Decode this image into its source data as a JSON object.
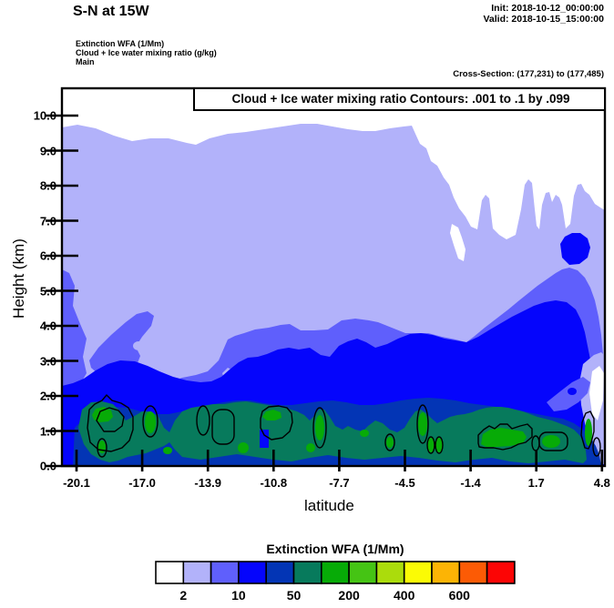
{
  "header": {
    "title": "S-N at 15W",
    "init_label": "Init: 2018-10-12_00:00:00",
    "valid_label": "Valid: 2018-10-15_15:00:00",
    "field_line1": "Extinction WFA  (1/Mm)",
    "field_line2": "Cloud + Ice water mixing ratio   (g/kg)",
    "field_line3": "Main",
    "cross_section": "Cross-Section: (177,231) to (177,485)"
  },
  "plot": {
    "contour_title": "Cloud + Ice water mixing ratio Contours: .001 to .1 by .099",
    "ylabel": "Height (km)",
    "xlabel": "latitude",
    "y_tick_labels": [
      "10.0",
      "9.0",
      "8.0",
      "7.0",
      "6.0",
      "5.0",
      "4.0",
      "3.0",
      "2.0",
      "1.0",
      "0.0"
    ],
    "x_tick_labels": [
      "-20.1",
      "-17.0",
      "-13.9",
      "-10.8",
      "-7.7",
      "-4.5",
      "-1.4",
      "1.7",
      "4.8"
    ]
  },
  "colorbar": {
    "title": "Extinction WFA  (1/Mm)",
    "boundary_labels": [
      "2",
      "10",
      "50",
      "200",
      "400",
      "600"
    ],
    "colors": [
      "#ffffff",
      "#b2b2fa",
      "#5f5ffc",
      "#0505fc",
      "#0335b5",
      "#077a5c",
      "#07ab07",
      "#45c414",
      "#abdc0c",
      "#fbfb05",
      "#fcb405",
      "#fc5b05",
      "#fc0505"
    ]
  },
  "chart_data": {
    "type": "heatmap",
    "title": "S-N at 15W",
    "subtitle": "Cloud + Ice water mixing ratio Contours: .001 to .1 by .099",
    "init_time": "2018-10-12_00:00:00",
    "valid_time": "2018-10-15_15:00:00",
    "cross_section_gridpoints": "(177,231) to (177,485)",
    "xlabel": "latitude",
    "ylabel": "Height (km)",
    "x_ticks": [
      -20.1,
      -17.0,
      -13.9,
      -10.8,
      -7.7,
      -4.5,
      -1.4,
      1.7,
      4.8
    ],
    "y_ticks": [
      0.0,
      1.0,
      2.0,
      3.0,
      4.0,
      5.0,
      6.0,
      7.0,
      8.0,
      9.0,
      10.0
    ],
    "xlim": [
      -20.1,
      4.8
    ],
    "ylim": [
      0.0,
      10.8
    ],
    "grid": false,
    "legend_position": "bottom colorbar",
    "fill_field": {
      "name": "Extinction WFA (1/Mm)",
      "colorbar_boundaries": [
        1,
        2,
        5,
        10,
        20,
        50,
        100,
        200,
        300,
        400,
        500,
        600,
        700
      ],
      "labeled_boundaries": [
        2,
        10,
        50,
        200,
        400,
        600
      ],
      "colors": [
        "#ffffff",
        "#b2b2fa",
        "#5f5ffc",
        "#0505fc",
        "#0335b5",
        "#077a5c",
        "#07ab07",
        "#45c414",
        "#abdc0c",
        "#fbfb05",
        "#fcb405",
        "#fc5b05",
        "#fc0505"
      ],
      "max_band_shown": "50-100 (green) in shallow cores below 1.5 km"
    },
    "contour_field": {
      "name": "Cloud + Ice water mixing ratio (g/kg)",
      "levels": [
        0.001,
        0.1
      ],
      "note": "black closed contours only in lowest 1.5 km around boundary-layer cloud cores"
    },
    "features": [
      "1-2 1/Mm (pale periwinkle) layer fills most of section up to ~9.5-9.7 km",
      "clear (white) notch in upper right between ~ -3 and 4 lat above ~6.5 km with narrow plumes reaching ~8 km",
      "2-5 1/Mm (violet) band from ~2-3.5 km rising to ~5.5 km near 2-4 lat, elevated patch near 6 km at 1-4 lat with 5-10 core",
      "5-10 1/Mm (blue) mass below ~2-3.5 km across full width",
      "10-20 1/Mm (navy) band below ~1.7 km",
      "20-50 1/Mm (teal) band below ~1.5 km with numerous 50-100 (green) cores near 0.5-1.2 km",
      "cloud water contours (.001, .1) enclose the green cores near the surface"
    ]
  }
}
